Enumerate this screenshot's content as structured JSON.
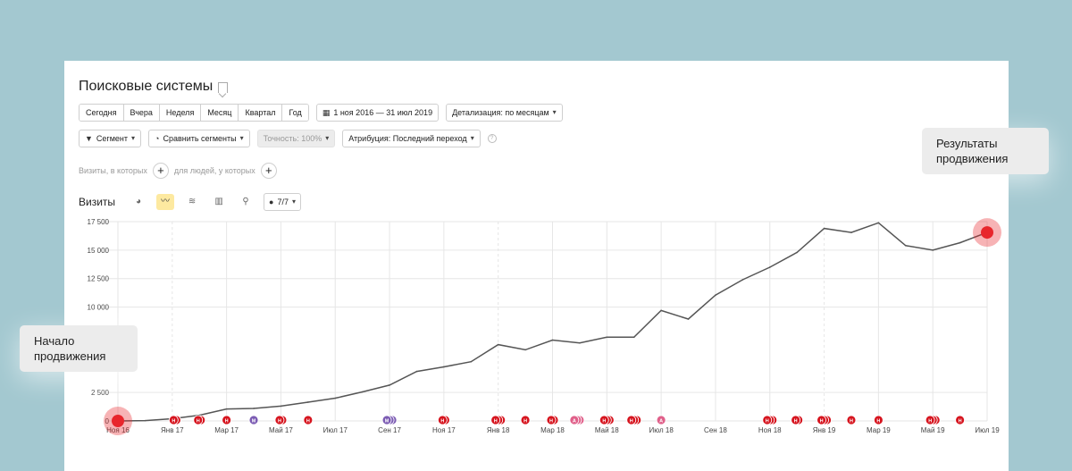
{
  "report": {
    "title": "Поисковые системы",
    "periods": [
      "Сегодня",
      "Вчера",
      "Неделя",
      "Месяц",
      "Квартал",
      "Год"
    ],
    "date_range": "1 ноя 2016 — 31 июл 2019",
    "detail": "Детализация: по месяцам",
    "segment": "Сегмент",
    "compare": "Сравнить сегменты",
    "accuracy": "Точность: 100%",
    "attribution": "Атрибуция: Последний переход",
    "filter_visits": "Визиты, в которых",
    "filter_people": "для людей, у которых",
    "chart_title": "Визиты",
    "notes_count": "7/7"
  },
  "callouts": {
    "start": "Начало продвижения",
    "result": "Результаты продвижения"
  },
  "colors": {
    "background": "#a3c8d0",
    "line": "#555555",
    "grid": "#e6e6e6",
    "marker": "#e8262c",
    "note_red": "#d6141e",
    "note_purple": "#7b5bb3",
    "note_pink": "#e0608a",
    "toggle_active": "#fde9a0"
  },
  "icons": {
    "date": "calendar-icon",
    "segment": "funnel-icon",
    "compare": "segments-icon",
    "notes": "comment-icon"
  },
  "chart_data": {
    "type": "line",
    "title": "Визиты",
    "x": [
      "Ноя 16",
      "Дек 16",
      "Янв 17",
      "Фев 17",
      "Мар 17",
      "Апр 17",
      "Май 17",
      "Июн 17",
      "Июл 17",
      "Авг 17",
      "Сен 17",
      "Окт 17",
      "Ноя 17",
      "Дек 17",
      "Янв 18",
      "Фев 18",
      "Мар 18",
      "Апр 18",
      "Май 18",
      "Июн 18",
      "Июл 18",
      "Авг 18",
      "Сен 18",
      "Окт 18",
      "Ноя 18",
      "Дек 18",
      "Янв 19",
      "Фев 19",
      "Мар 19",
      "Апр 19",
      "Май 19",
      "Июн 19",
      "Июл 19"
    ],
    "series": [
      {
        "values": [
          0,
          30,
          200,
          500,
          1050,
          1100,
          1300,
          1650,
          2000,
          2550,
          3150,
          4350,
          4750,
          5200,
          6700,
          6250,
          7100,
          6850,
          7350,
          7350,
          9700,
          8950,
          11050,
          12400,
          13500,
          14800,
          16900,
          16550,
          17400,
          15400,
          15000,
          15650,
          16550
        ]
      }
    ],
    "xticks": [
      "Ноя 16",
      "Янв 17",
      "Мар 17",
      "Май 17",
      "Июл 17",
      "Сен 17",
      "Ноя 17",
      "Янв 18",
      "Мар 18",
      "Май 18",
      "Июл 18",
      "Сен 18",
      "Ноя 18",
      "Янв 19",
      "Мар 19",
      "Май 19",
      "Июл 19"
    ],
    "yticks": [
      0,
      2500,
      10000,
      12500,
      15000,
      17500
    ],
    "ytick_labels": [
      "0",
      "2 500",
      "10 000",
      "12 500",
      "15 000",
      "17 500"
    ],
    "ylim": [
      0,
      17500
    ],
    "grid": true,
    "annotations": [
      {
        "x": 2.1,
        "label": "Н",
        "count": 2,
        "kind": "red"
      },
      {
        "x": 3.0,
        "label": "Н",
        "count": 2,
        "kind": "red"
      },
      {
        "x": 4.0,
        "label": "Н",
        "count": 1,
        "kind": "red"
      },
      {
        "x": 5.0,
        "label": "М",
        "count": 1,
        "kind": "purple"
      },
      {
        "x": 6.0,
        "label": "Н",
        "count": 2,
        "kind": "red"
      },
      {
        "x": 7.0,
        "label": "Н",
        "count": 1,
        "kind": "red"
      },
      {
        "x": 10.0,
        "label": "М",
        "count": 3,
        "kind": "purple"
      },
      {
        "x": 12.0,
        "label": "Н",
        "count": 2,
        "kind": "red"
      },
      {
        "x": 14.0,
        "label": "Н",
        "count": 3,
        "kind": "red"
      },
      {
        "x": 15.0,
        "label": "Н",
        "count": 1,
        "kind": "red"
      },
      {
        "x": 16.0,
        "label": "Н",
        "count": 2,
        "kind": "red"
      },
      {
        "x": 16.9,
        "label": "А",
        "count": 3,
        "kind": "pink"
      },
      {
        "x": 18.0,
        "label": "Н",
        "count": 3,
        "kind": "red"
      },
      {
        "x": 19.0,
        "label": "Н",
        "count": 3,
        "kind": "red"
      },
      {
        "x": 20.0,
        "label": "А",
        "count": 1,
        "kind": "pink"
      },
      {
        "x": 24.0,
        "label": "Н",
        "count": 3,
        "kind": "red"
      },
      {
        "x": 25.0,
        "label": "Н",
        "count": 2,
        "kind": "red"
      },
      {
        "x": 26.0,
        "label": "Н",
        "count": 3,
        "kind": "red"
      },
      {
        "x": 27.0,
        "label": "Н",
        "count": 1,
        "kind": "red"
      },
      {
        "x": 28.0,
        "label": "Н",
        "count": 1,
        "kind": "red"
      },
      {
        "x": 30.0,
        "label": "Н",
        "count": 3,
        "kind": "red"
      },
      {
        "x": 31.0,
        "label": "Н",
        "count": 1,
        "kind": "red"
      }
    ]
  }
}
